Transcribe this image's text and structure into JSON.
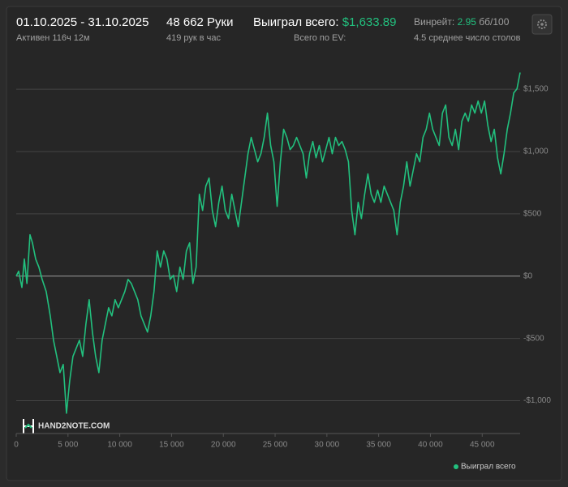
{
  "header": {
    "period": "01.10.2025 - 31.10.2025",
    "active": "Активен 116ч 12м",
    "hands": "48 662 Руки",
    "hands_per_hour": "419 рук в час",
    "won_label": "Выиграл всего:",
    "won_value": "$1,633.89",
    "ev_label": "Всего по EV:",
    "winrate_label": "Винрейт:",
    "winrate_value": "2.95",
    "winrate_unit": "бб/100",
    "tables": "4.5 среднее число столов",
    "logo": "HAND2NOTE.COM"
  },
  "chart_data": {
    "type": "line",
    "x": [
      0,
      235,
      548,
      783,
      1033,
      1330,
      1565,
      1878,
      2191,
      2504,
      2896,
      3287,
      3600,
      3913,
      4226,
      4539,
      4852,
      5165,
      5478,
      5791,
      6104,
      6417,
      6730,
      7043,
      7356,
      7669,
      7982,
      8295,
      8608,
      8921,
      9234,
      9547,
      9860,
      10173,
      10486,
      10799,
      11112,
      11425,
      11738,
      12051,
      12364,
      12677,
      12990,
      13303,
      13616,
      13929,
      14242,
      14555,
      14868,
      15181,
      15494,
      15807,
      16120,
      16433,
      16746,
      17059,
      17372,
      17685,
      17998,
      18311,
      18624,
      18937,
      19250,
      19563,
      19876,
      20189,
      20502,
      20815,
      21128,
      21441,
      21754,
      22067,
      22380,
      22693,
      23006,
      23319,
      23632,
      23945,
      24258,
      24571,
      24884,
      25197,
      25510,
      25823,
      26136,
      26449,
      26762,
      27075,
      27388,
      27701,
      28014,
      28327,
      28640,
      28953,
      29266,
      29579,
      29892,
      30205,
      30518,
      30831,
      31144,
      31457,
      31770,
      32083,
      32396,
      32709,
      33022,
      33335,
      33648,
      33961,
      34274,
      34587,
      34900,
      35213,
      35526,
      35839,
      36152,
      36465,
      36778,
      37091,
      37404,
      37717,
      38030,
      38343,
      38656,
      38969,
      39282,
      39595,
      39908,
      40221,
      40534,
      40847,
      41160,
      41473,
      41786,
      42099,
      42412,
      42725,
      43038,
      43351,
      43664,
      43977,
      44290,
      44603,
      44916,
      45229,
      45542,
      45855,
      46168,
      46481,
      46794,
      47107,
      47420,
      47733,
      48046,
      48359,
      48662
    ],
    "series": [
      {
        "name": "Выиграл всего",
        "color": "#22c07e",
        "values": [
          0,
          39,
          -91,
          137,
          -59,
          332,
          267,
          137,
          72,
          -26,
          -124,
          -319,
          -514,
          -644,
          -774,
          -709,
          -1100,
          -839,
          -644,
          -579,
          -514,
          -644,
          -384,
          -189,
          -449,
          -644,
          -774,
          -514,
          -384,
          -254,
          -319,
          -189,
          -254,
          -189,
          -124,
          -26,
          -59,
          -124,
          -189,
          -319,
          -384,
          -449,
          -319,
          -124,
          202,
          72,
          202,
          137,
          -26,
          7,
          -124,
          72,
          -26,
          202,
          267,
          -59,
          72,
          657,
          527,
          722,
          787,
          527,
          397,
          592,
          722,
          527,
          462,
          657,
          527,
          397,
          592,
          787,
          982,
          1113,
          1015,
          917,
          982,
          1113,
          1308,
          1048,
          917,
          560,
          917,
          1178,
          1113,
          1015,
          1048,
          1113,
          1048,
          982,
          787,
          982,
          1080,
          950,
          1048,
          917,
          1015,
          1113,
          982,
          1113,
          1048,
          1080,
          1015,
          917,
          527,
          332,
          592,
          462,
          657,
          820,
          657,
          592,
          690,
          592,
          722,
          657,
          592,
          527,
          332,
          592,
          722,
          917,
          722,
          852,
          982,
          917,
          1113,
          1178,
          1308,
          1178,
          1113,
          1048,
          1308,
          1373,
          1113,
          1048,
          1178,
          1015,
          1243,
          1308,
          1243,
          1373,
          1308,
          1405,
          1308,
          1405,
          1210,
          1080,
          1178,
          950,
          820,
          982,
          1178,
          1308,
          1470,
          1503,
          1633.89
        ]
      }
    ],
    "xlim": [
      0,
      48662
    ],
    "ylim": [
      -1250,
      1650
    ],
    "xticks": [
      0,
      {
        "value": 5000,
        "label": "5 000"
      },
      {
        "value": 10000,
        "label": "10 000"
      },
      {
        "value": 15000,
        "label": "15 000"
      },
      {
        "value": 20000,
        "label": "20 000"
      },
      {
        "value": 25000,
        "label": "25 000"
      },
      {
        "value": 30000,
        "label": "30 000"
      },
      {
        "value": 35000,
        "label": "35 000"
      },
      {
        "value": 40000,
        "label": "40 000"
      },
      {
        "value": 45000,
        "label": "45 000"
      }
    ],
    "yticks": [
      {
        "value": -1000,
        "label": "-$1,000"
      },
      {
        "value": -500,
        "label": "-$500"
      },
      {
        "value": 0,
        "label": "$0"
      },
      {
        "value": 500,
        "label": "$500"
      },
      {
        "value": 1000,
        "label": "$1,000"
      },
      {
        "value": 1500,
        "label": "$1,500"
      }
    ],
    "grid": true
  }
}
